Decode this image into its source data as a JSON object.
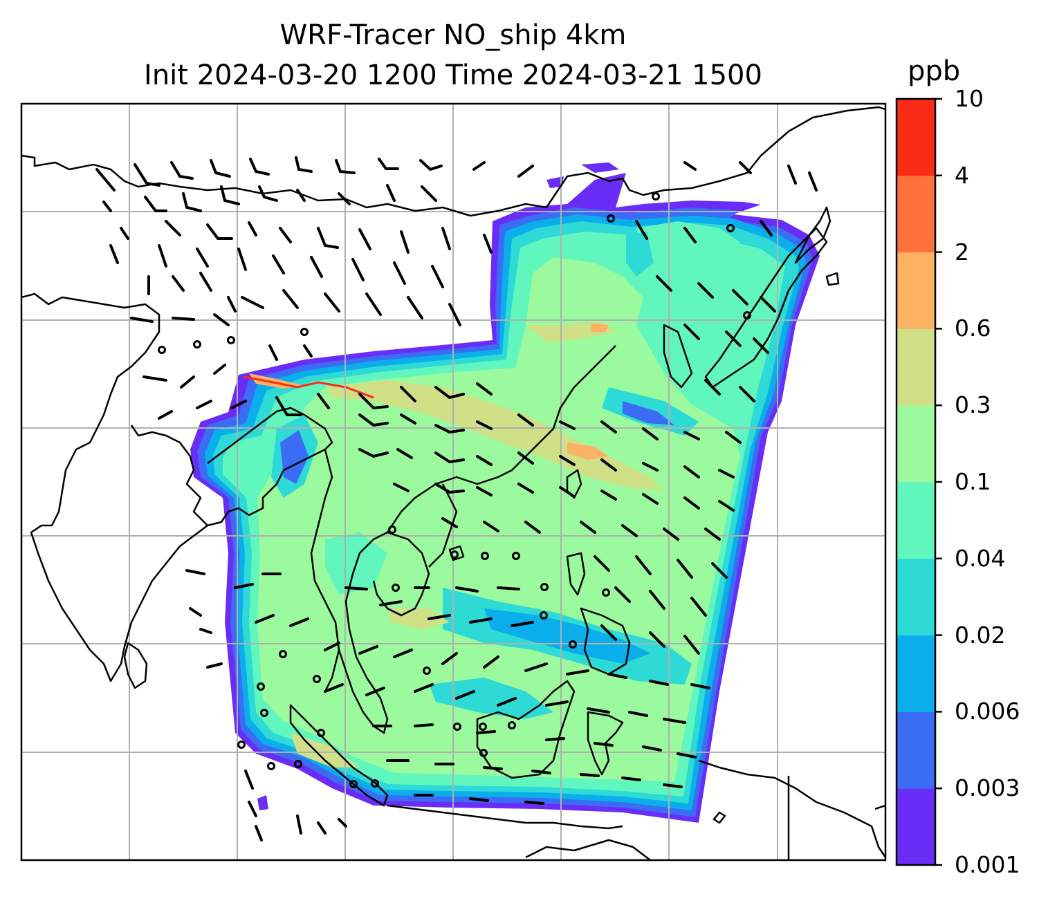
{
  "title": {
    "line1": "WRF-Tracer NO_ship 4km",
    "line2": "Init 2024-03-20 1200 Time 2024-03-21 1500"
  },
  "colorbar": {
    "label": "ppb",
    "ticks": [
      "0.001",
      "0.003",
      "0.006",
      "0.02",
      "0.04",
      "0.1",
      "0.3",
      "0.6",
      "2",
      "4",
      "10"
    ],
    "colors": [
      "#6a2cf7",
      "#3a6cf4",
      "#0aaeeb",
      "#2edad6",
      "#62f6bf",
      "#9bfa9d",
      "#cfe087",
      "#fcb263",
      "#ff713b",
      "#fa2c17"
    ]
  },
  "map": {
    "variable": "NO_ship",
    "units": "ppb",
    "coastline_color": "#000000",
    "gridline_color": "#b0b0b0",
    "wind_barb_color": "#000000"
  }
}
